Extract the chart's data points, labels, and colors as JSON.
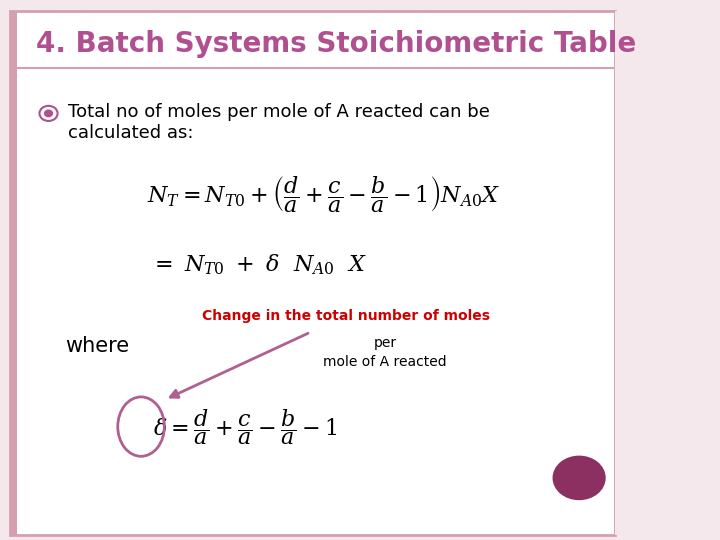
{
  "title": "4. Batch Systems Stoichiometric Table",
  "title_color": "#b05090",
  "bg_color": "#ffffff",
  "border_color": "#d4a0b0",
  "slide_bg": "#f5e8ed",
  "bullet_color": "#b05090",
  "bullet_text_line1": "Total no of moles per mole of A reacted can be",
  "bullet_text_line2": "calculated as:",
  "bullet_text_color": "#000000",
  "where_text": "where",
  "annotation_red": "Change in the total number of moles",
  "annotation_black_line1": "per",
  "annotation_black_line2": "mole of A reacted",
  "annotation_color": "#cc0000",
  "annotation_black_color": "#000000",
  "arrow_color": "#b06090",
  "circle_color": "#b06090",
  "dot_color": "#8b3060",
  "font_size_title": 20,
  "font_size_body": 13,
  "font_size_eq": 16,
  "font_size_where": 15
}
